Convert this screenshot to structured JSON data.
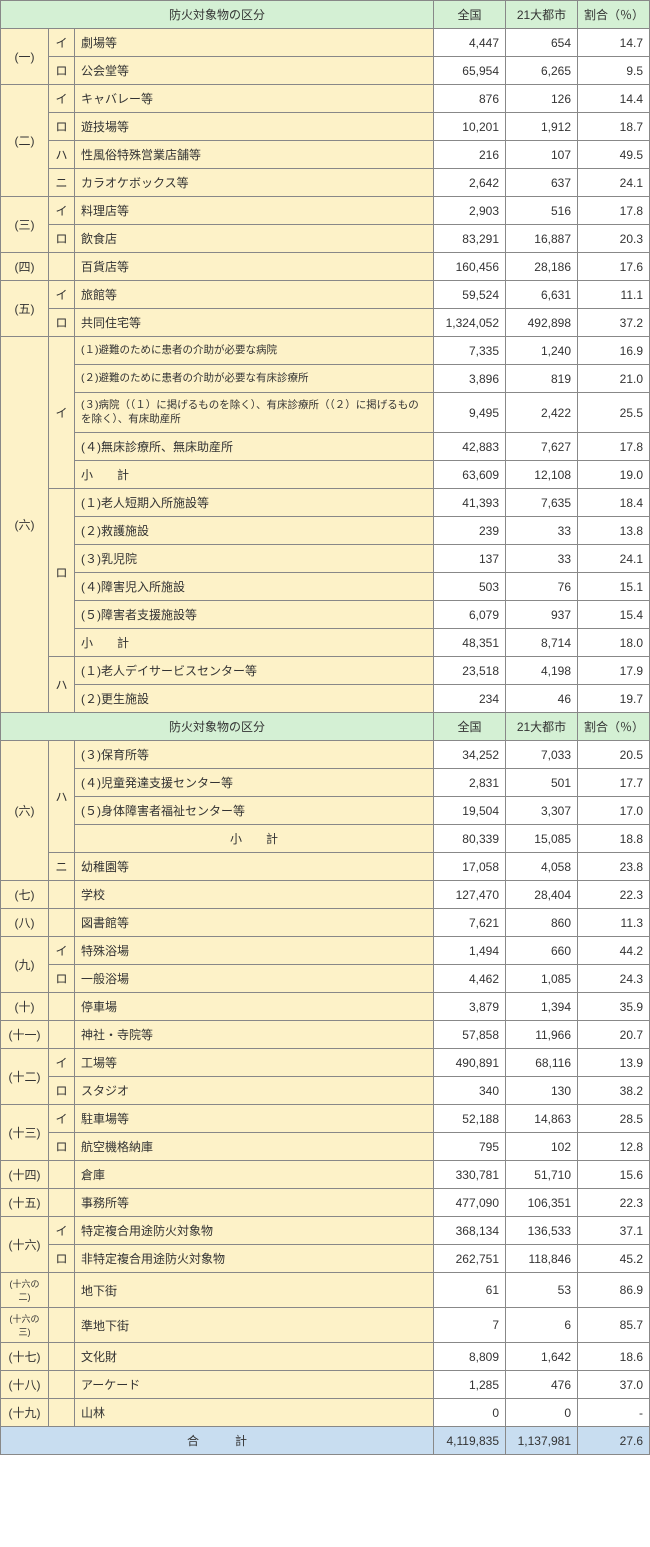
{
  "header": {
    "category": "防火対象物の区分",
    "national": "全国",
    "cities": "21大都市",
    "ratio": "割合（％）"
  },
  "colors": {
    "header_bg": "#d4f0d4",
    "category_bg": "#fdf2c8",
    "total_bg": "#c8ddf0",
    "border": "#888888",
    "text": "#333333"
  },
  "groups": [
    {
      "k": "(一)",
      "rows": [
        {
          "sub": "イ",
          "label": "劇場等",
          "n": "4,447",
          "c": "654",
          "r": "14.7"
        },
        {
          "sub": "ロ",
          "label": "公会堂等",
          "n": "65,954",
          "c": "6,265",
          "r": "9.5"
        }
      ]
    },
    {
      "k": "(二)",
      "rows": [
        {
          "sub": "イ",
          "label": "キャバレー等",
          "n": "876",
          "c": "126",
          "r": "14.4"
        },
        {
          "sub": "ロ",
          "label": "遊技場等",
          "n": "10,201",
          "c": "1,912",
          "r": "18.7"
        },
        {
          "sub": "ハ",
          "label": "性風俗特殊営業店舗等",
          "n": "216",
          "c": "107",
          "r": "49.5"
        },
        {
          "sub": "ニ",
          "label": "カラオケボックス等",
          "n": "2,642",
          "c": "637",
          "r": "24.1"
        }
      ]
    },
    {
      "k": "(三)",
      "rows": [
        {
          "sub": "イ",
          "label": "料理店等",
          "n": "2,903",
          "c": "516",
          "r": "17.8"
        },
        {
          "sub": "ロ",
          "label": "飲食店",
          "n": "83,291",
          "c": "16,887",
          "r": "20.3"
        }
      ]
    },
    {
      "k": "(四)",
      "rows": [
        {
          "sub": "",
          "label": "百貨店等",
          "n": "160,456",
          "c": "28,186",
          "r": "17.6"
        }
      ]
    },
    {
      "k": "(五)",
      "rows": [
        {
          "sub": "イ",
          "label": "旅館等",
          "n": "59,524",
          "c": "6,631",
          "r": "11.1"
        },
        {
          "sub": "ロ",
          "label": "共同住宅等",
          "n": "1,324,052",
          "c": "492,898",
          "r": "37.2"
        }
      ]
    }
  ],
  "six_top": {
    "k": "(六)",
    "i_rows": [
      {
        "label": "(１)避難のために患者の介助が必要な病院",
        "n": "7,335",
        "c": "1,240",
        "r": "16.9",
        "small": true
      },
      {
        "label": "(２)避難のために患者の介助が必要な有床診療所",
        "n": "3,896",
        "c": "819",
        "r": "21.0",
        "small": true
      },
      {
        "label": "(３)病院（（１）に掲げるものを除く）、有床診療所（（２）に掲げるものを除く）、有床助産所",
        "n": "9,495",
        "c": "2,422",
        "r": "25.5",
        "small": true,
        "tall": true
      },
      {
        "label": "(４)無床診療所、無床助産所",
        "n": "42,883",
        "c": "7,627",
        "r": "17.8"
      },
      {
        "label": "小　　計",
        "n": "63,609",
        "c": "12,108",
        "r": "19.0"
      }
    ],
    "ro_rows": [
      {
        "label": "(１)老人短期入所施設等",
        "n": "41,393",
        "c": "7,635",
        "r": "18.4"
      },
      {
        "label": "(２)救護施設",
        "n": "239",
        "c": "33",
        "r": "13.8"
      },
      {
        "label": "(３)乳児院",
        "n": "137",
        "c": "33",
        "r": "24.1"
      },
      {
        "label": "(４)障害児入所施設",
        "n": "503",
        "c": "76",
        "r": "15.1"
      },
      {
        "label": "(５)障害者支援施設等",
        "n": "6,079",
        "c": "937",
        "r": "15.4"
      },
      {
        "label": "小　　計",
        "n": "48,351",
        "c": "8,714",
        "r": "18.0"
      }
    ],
    "ha_rows": [
      {
        "label": "(１)老人デイサービスセンター等",
        "n": "23,518",
        "c": "4,198",
        "r": "17.9"
      },
      {
        "label": "(２)更生施設",
        "n": "234",
        "c": "46",
        "r": "19.7"
      }
    ]
  },
  "six_bottom": {
    "k": "(六)",
    "ha_rows": [
      {
        "label": "(３)保育所等",
        "n": "34,252",
        "c": "7,033",
        "r": "20.5"
      },
      {
        "label": "(４)児童発達支援センター等",
        "n": "2,831",
        "c": "501",
        "r": "17.7"
      },
      {
        "label": "(５)身体障害者福祉センター等",
        "n": "19,504",
        "c": "3,307",
        "r": "17.0"
      },
      {
        "label": "小　　計",
        "n": "80,339",
        "c": "15,085",
        "r": "18.8",
        "center": true
      }
    ],
    "ni_row": {
      "sub": "ニ",
      "label": "幼稚園等",
      "n": "17,058",
      "c": "4,058",
      "r": "23.8"
    }
  },
  "groups2": [
    {
      "k": "(七)",
      "rows": [
        {
          "sub": "",
          "label": "学校",
          "n": "127,470",
          "c": "28,404",
          "r": "22.3"
        }
      ]
    },
    {
      "k": "(八)",
      "rows": [
        {
          "sub": "",
          "label": "図書館等",
          "n": "7,621",
          "c": "860",
          "r": "11.3"
        }
      ]
    },
    {
      "k": "(九)",
      "rows": [
        {
          "sub": "イ",
          "label": "特殊浴場",
          "n": "1,494",
          "c": "660",
          "r": "44.2"
        },
        {
          "sub": "ロ",
          "label": "一般浴場",
          "n": "4,462",
          "c": "1,085",
          "r": "24.3"
        }
      ]
    },
    {
      "k": "(十)",
      "rows": [
        {
          "sub": "",
          "label": "停車場",
          "n": "3,879",
          "c": "1,394",
          "r": "35.9"
        }
      ]
    },
    {
      "k": "(十一)",
      "rows": [
        {
          "sub": "",
          "label": "神社・寺院等",
          "n": "57,858",
          "c": "11,966",
          "r": "20.7"
        }
      ]
    },
    {
      "k": "(十二)",
      "rows": [
        {
          "sub": "イ",
          "label": "工場等",
          "n": "490,891",
          "c": "68,116",
          "r": "13.9"
        },
        {
          "sub": "ロ",
          "label": "スタジオ",
          "n": "340",
          "c": "130",
          "r": "38.2"
        }
      ]
    },
    {
      "k": "(十三)",
      "rows": [
        {
          "sub": "イ",
          "label": "駐車場等",
          "n": "52,188",
          "c": "14,863",
          "r": "28.5"
        },
        {
          "sub": "ロ",
          "label": "航空機格納庫",
          "n": "795",
          "c": "102",
          "r": "12.8"
        }
      ]
    },
    {
      "k": "(十四)",
      "rows": [
        {
          "sub": "",
          "label": "倉庫",
          "n": "330,781",
          "c": "51,710",
          "r": "15.6"
        }
      ]
    },
    {
      "k": "(十五)",
      "rows": [
        {
          "sub": "",
          "label": "事務所等",
          "n": "477,090",
          "c": "106,351",
          "r": "22.3"
        }
      ]
    },
    {
      "k": "(十六)",
      "rows": [
        {
          "sub": "イ",
          "label": "特定複合用途防火対象物",
          "n": "368,134",
          "c": "136,533",
          "r": "37.1"
        },
        {
          "sub": "ロ",
          "label": "非特定複合用途防火対象物",
          "n": "262,751",
          "c": "118,846",
          "r": "45.2"
        }
      ]
    },
    {
      "k": "(十六の二)",
      "tiny": true,
      "rows": [
        {
          "sub": "",
          "label": "地下街",
          "n": "61",
          "c": "53",
          "r": "86.9"
        }
      ]
    },
    {
      "k": "(十六の三)",
      "tiny": true,
      "rows": [
        {
          "sub": "",
          "label": "準地下街",
          "n": "7",
          "c": "6",
          "r": "85.7"
        }
      ]
    },
    {
      "k": "(十七)",
      "rows": [
        {
          "sub": "",
          "label": "文化財",
          "n": "8,809",
          "c": "1,642",
          "r": "18.6"
        }
      ]
    },
    {
      "k": "(十八)",
      "rows": [
        {
          "sub": "",
          "label": "アーケード",
          "n": "1,285",
          "c": "476",
          "r": "37.0"
        }
      ]
    },
    {
      "k": "(十九)",
      "rows": [
        {
          "sub": "",
          "label": "山林",
          "n": "0",
          "c": "0",
          "r": "-"
        }
      ]
    }
  ],
  "total": {
    "label": "合　　　計",
    "n": "4,119,835",
    "c": "1,137,981",
    "r": "27.6"
  }
}
